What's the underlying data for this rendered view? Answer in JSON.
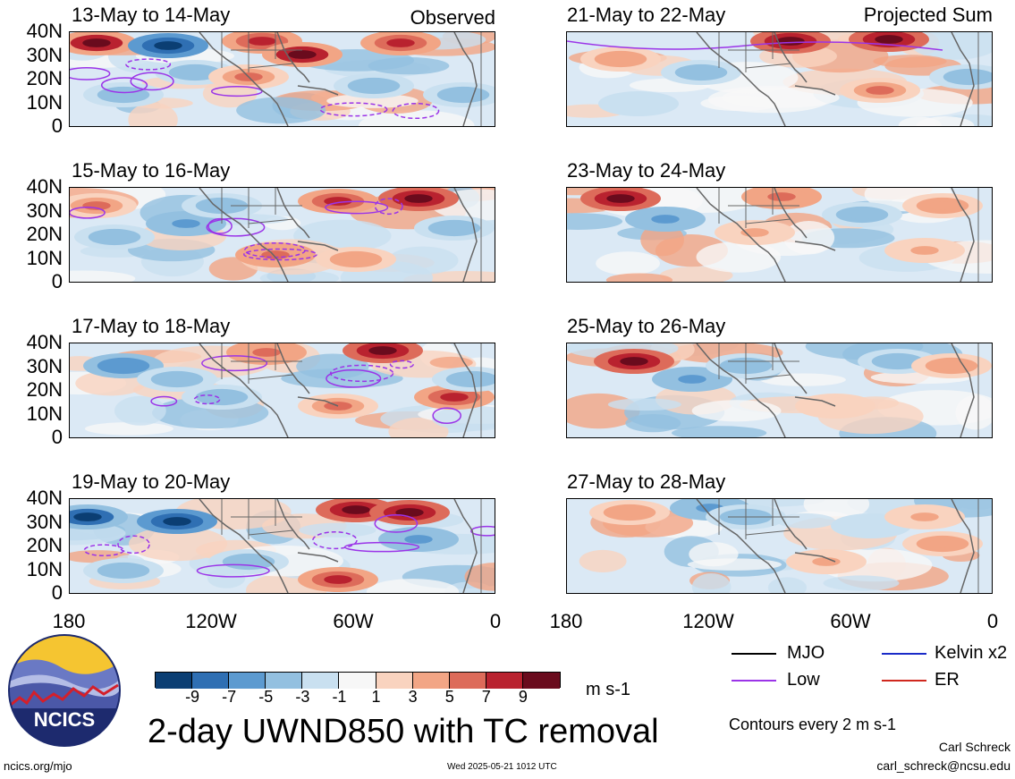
{
  "chart_data": {
    "type": "heatmap",
    "variable": "2-day UWND850 with TC removal",
    "units": "m s-1",
    "x_ticks": [
      "180",
      "120W",
      "60W",
      "0"
    ],
    "y_ticks": [
      "40N",
      "30N",
      "20N",
      "10N",
      "0"
    ],
    "columns": [
      {
        "tag": "Observed",
        "panels": [
          {
            "title": "13-May to 14-May"
          },
          {
            "title": "15-May to 16-May"
          },
          {
            "title": "17-May to 18-May"
          },
          {
            "title": "19-May to 20-May"
          }
        ]
      },
      {
        "tag": "Projected Sum",
        "panels": [
          {
            "title": "21-May to 22-May"
          },
          {
            "title": "23-May to 24-May"
          },
          {
            "title": "25-May to 26-May"
          },
          {
            "title": "27-May to 28-May"
          }
        ]
      }
    ],
    "colorbar": {
      "labels": [
        "-9",
        "-7",
        "-5",
        "-3",
        "-1",
        "1",
        "3",
        "5",
        "7",
        "9"
      ],
      "colors": [
        "#0b3e73",
        "#2f6fb3",
        "#5c9ad0",
        "#93c0e0",
        "#c9e0f0",
        "#f7f7f7",
        "#f9d3bf",
        "#f2a585",
        "#dd6b5a",
        "#b9222f",
        "#6a0b1d"
      ]
    },
    "legend": {
      "items": [
        {
          "label": "MJO",
          "color": "#000000"
        },
        {
          "label": "Kelvin x2",
          "color": "#1a2bc8"
        },
        {
          "label": "Low",
          "color": "#9b34e8"
        },
        {
          "label": "ER",
          "color": "#d0281e"
        }
      ],
      "contour_note": "Contours every 2 m s-1"
    }
  },
  "logo": {
    "text": "NCICS"
  },
  "footer": {
    "url": "ncics.org/mjo",
    "timestamp": "Wed 2025-05-21 1012 UTC",
    "author": "Carl Schreck",
    "email": "carl_schreck@ncsu.edu"
  }
}
